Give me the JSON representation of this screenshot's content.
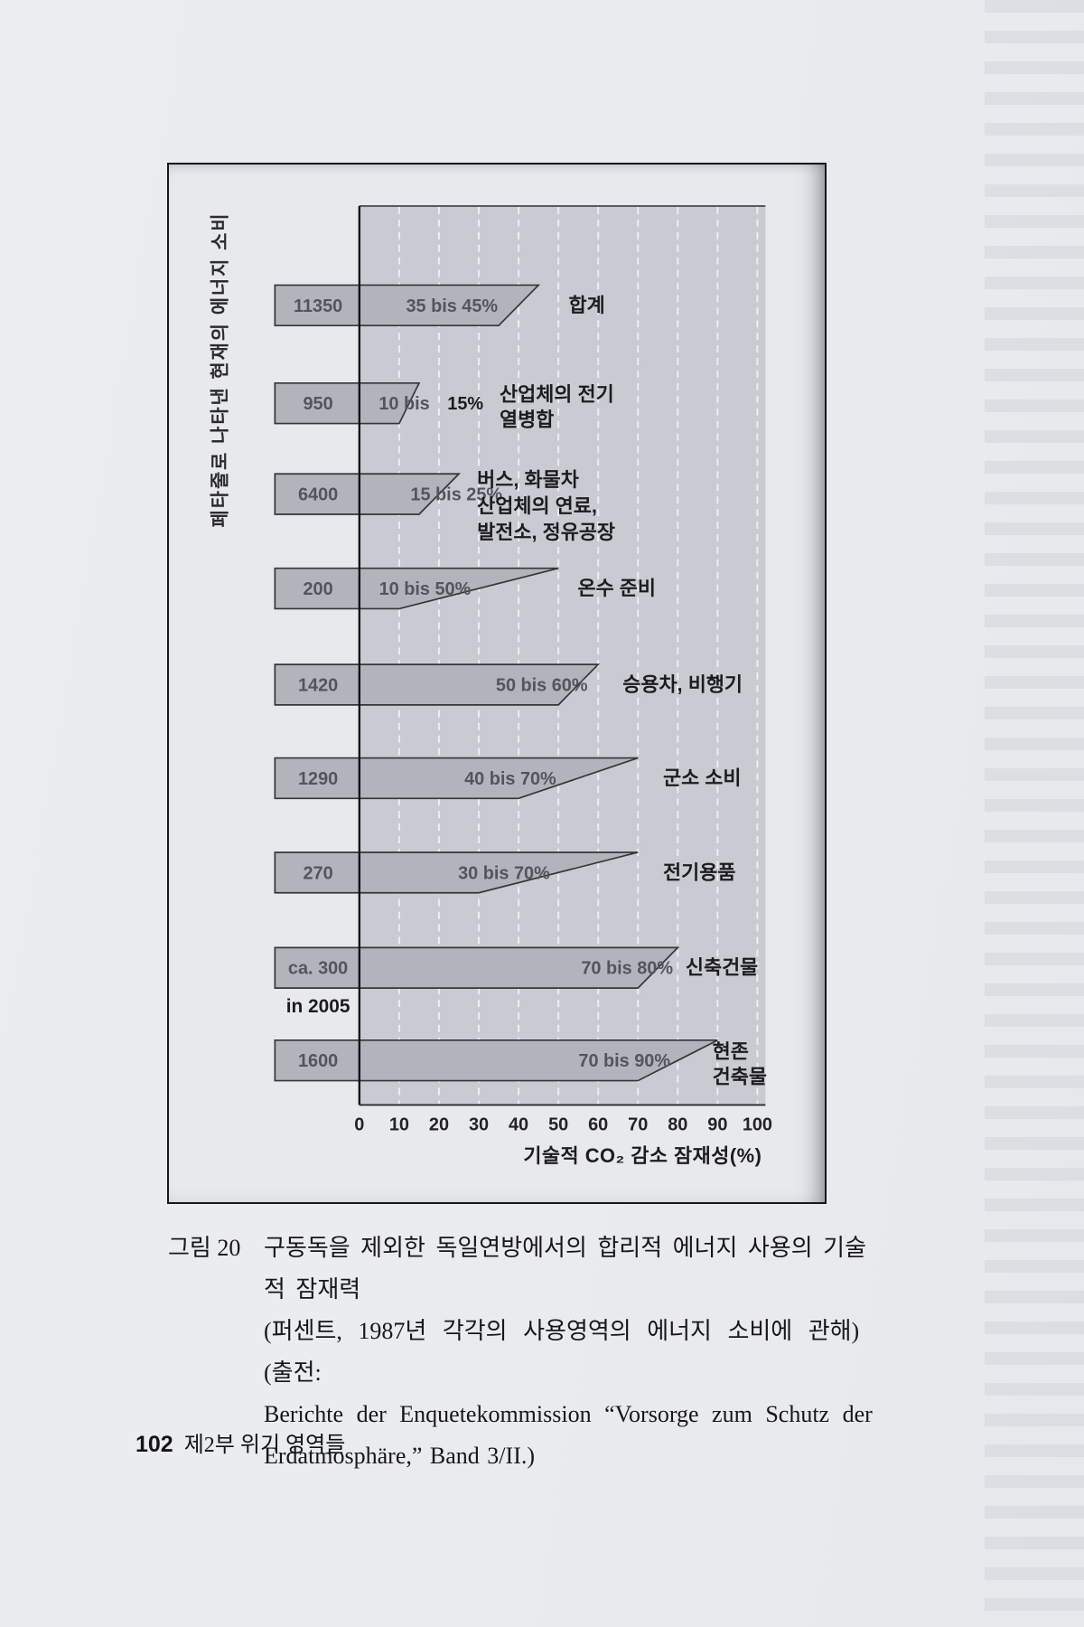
{
  "page": {
    "footer": {
      "page_number": "102",
      "section": "제2부 위기 영역들"
    }
  },
  "figure": {
    "caption": {
      "tag": "그림 20",
      "lines": [
        "구동독을 제외한 독일연방에서의 합리적 에너지 사용의 기술적 잠재력",
        "(퍼센트, 1987년 각각의 사용영역의 에너지 소비에 관해) (출전:",
        "Berichte der Enquetekommission “Vorsorge zum Schutz der",
        "Erdatmosphäre,” Band 3/II.)"
      ]
    }
  },
  "colors": {
    "bar_fill": "#b1b4bb",
    "bar_stroke": "#35353a",
    "plot_bg": "#c9cbd2",
    "gridline": "#eef0f3",
    "axis": "#141418",
    "ink": "#1c1c1f",
    "page_bg": "#e9ebee"
  },
  "chart_data": {
    "type": "bar",
    "orientation": "horizontal-range",
    "title": "",
    "xlabel": "기술적 CO₂ 감소 잠재성(%)",
    "ylabel": "페타줄로 나타낸 현재의 에너지 소비",
    "xlim": [
      0,
      100
    ],
    "x_ticks": [
      0,
      10,
      20,
      30,
      40,
      50,
      60,
      70,
      80,
      90,
      100
    ],
    "grid": true,
    "legend": "none",
    "bars": [
      {
        "value_label": "11350",
        "range": [
          35,
          45
        ],
        "range_label": "35 bis 45%",
        "category_lines": [
          "합계"
        ]
      },
      {
        "value_label": "950",
        "range": [
          10,
          15
        ],
        "range_label": "10 bis 15%",
        "range_label_inside": "10 bis",
        "range_label_outside": "15%",
        "category_lines": [
          "산업체의 전기",
          "열병합"
        ]
      },
      {
        "value_label": "6400",
        "range": [
          15,
          25
        ],
        "range_label": "15 bis 25%",
        "category_lines": [
          "버스, 화물차",
          "산업체의 연료,",
          "발전소, 정유공장"
        ]
      },
      {
        "value_label": "200",
        "range": [
          10,
          50
        ],
        "range_label": "10 bis 50%",
        "category_lines": [
          "온수 준비"
        ]
      },
      {
        "value_label": "1420",
        "range": [
          50,
          60
        ],
        "range_label": "50 bis 60%",
        "category_lines": [
          "승용차, 비행기"
        ]
      },
      {
        "value_label": "1290",
        "range": [
          40,
          70
        ],
        "range_label": "40 bis 70%",
        "category_lines": [
          "군소 소비"
        ]
      },
      {
        "value_label": "270",
        "range": [
          30,
          70
        ],
        "range_label": "30 bis 70%",
        "category_lines": [
          "전기용품"
        ]
      },
      {
        "value_label": "ca. 300",
        "value_sublabel": "in 2005",
        "range": [
          70,
          80
        ],
        "range_label": "70 bis 80%",
        "category_lines": [
          "신축건물"
        ]
      },
      {
        "value_label": "1600",
        "range": [
          70,
          90
        ],
        "range_label": "70 bis 90%",
        "category_lines": [
          "현존",
          "건축물"
        ]
      }
    ]
  }
}
